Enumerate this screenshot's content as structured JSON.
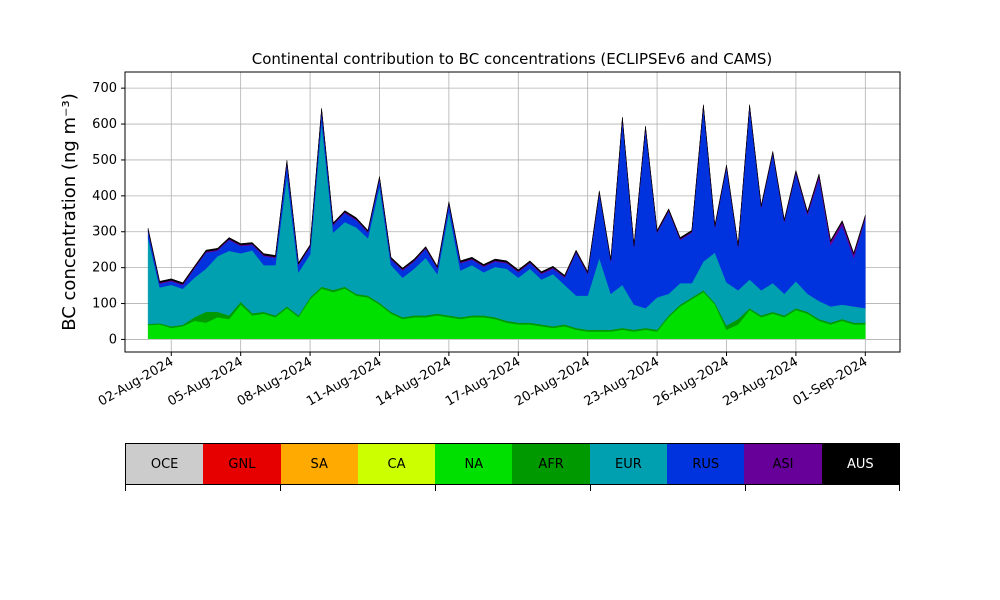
{
  "chart_data": {
    "type": "area",
    "stacked": true,
    "title": "Continental contribution to BC concentrations (ECLIPSEv6 and CAMS)",
    "ylabel": "BC concentration (ng m⁻³)",
    "xlabel": "",
    "x_ticks": [
      "02-Aug-2024",
      "05-Aug-2024",
      "08-Aug-2024",
      "11-Aug-2024",
      "14-Aug-2024",
      "17-Aug-2024",
      "20-Aug-2024",
      "23-Aug-2024",
      "26-Aug-2024",
      "29-Aug-2024",
      "01-Sep-2024"
    ],
    "y_ticks": [
      0,
      100,
      200,
      300,
      400,
      500,
      600,
      700
    ],
    "xlim": [
      "2024-07-31T00:00",
      "2024-09-02T12:00"
    ],
    "ylim": [
      -35,
      745
    ],
    "grid": true,
    "x": [
      "2024-08-01T00:00",
      "2024-08-01T12:00",
      "2024-08-02T00:00",
      "2024-08-02T12:00",
      "2024-08-03T00:00",
      "2024-08-03T12:00",
      "2024-08-04T00:00",
      "2024-08-04T12:00",
      "2024-08-05T00:00",
      "2024-08-05T12:00",
      "2024-08-06T00:00",
      "2024-08-06T12:00",
      "2024-08-07T00:00",
      "2024-08-07T12:00",
      "2024-08-08T00:00",
      "2024-08-08T12:00",
      "2024-08-09T00:00",
      "2024-08-09T12:00",
      "2024-08-10T00:00",
      "2024-08-10T12:00",
      "2024-08-11T00:00",
      "2024-08-11T12:00",
      "2024-08-12T00:00",
      "2024-08-12T12:00",
      "2024-08-13T00:00",
      "2024-08-13T12:00",
      "2024-08-14T00:00",
      "2024-08-14T12:00",
      "2024-08-15T00:00",
      "2024-08-15T12:00",
      "2024-08-16T00:00",
      "2024-08-16T12:00",
      "2024-08-17T00:00",
      "2024-08-17T12:00",
      "2024-08-18T00:00",
      "2024-08-18T12:00",
      "2024-08-19T00:00",
      "2024-08-19T12:00",
      "2024-08-20T00:00",
      "2024-08-20T12:00",
      "2024-08-21T00:00",
      "2024-08-21T12:00",
      "2024-08-22T00:00",
      "2024-08-22T12:00",
      "2024-08-23T00:00",
      "2024-08-23T12:00",
      "2024-08-24T00:00",
      "2024-08-24T12:00",
      "2024-08-25T00:00",
      "2024-08-25T12:00",
      "2024-08-26T00:00",
      "2024-08-26T12:00",
      "2024-08-27T00:00",
      "2024-08-27T12:00",
      "2024-08-28T00:00",
      "2024-08-28T12:00",
      "2024-08-29T00:00",
      "2024-08-29T12:00",
      "2024-08-30T00:00",
      "2024-08-30T12:00",
      "2024-08-31T00:00",
      "2024-08-31T12:00",
      "2024-09-01T00:00"
    ],
    "series": [
      {
        "name": "OCE",
        "color": "#cccccc",
        "values": [
          2,
          2,
          2,
          2,
          2,
          2,
          2,
          2,
          2,
          2,
          2,
          2,
          2,
          2,
          2,
          2,
          2,
          2,
          2,
          2,
          2,
          2,
          2,
          2,
          2,
          2,
          2,
          2,
          2,
          2,
          2,
          2,
          2,
          2,
          2,
          2,
          2,
          2,
          2,
          2,
          2,
          2,
          2,
          2,
          2,
          2,
          2,
          2,
          2,
          2,
          2,
          2,
          2,
          2,
          2,
          2,
          2,
          2,
          2,
          2,
          2,
          2,
          2
        ]
      },
      {
        "name": "GNL",
        "color": "#e60000",
        "values": [
          0,
          0,
          0,
          0,
          0,
          0,
          0,
          0,
          0,
          0,
          0,
          0,
          0,
          0,
          0,
          0,
          0,
          0,
          0,
          0,
          0,
          0,
          0,
          0,
          0,
          0,
          0,
          0,
          0,
          0,
          0,
          0,
          0,
          0,
          0,
          0,
          0,
          0,
          0,
          0,
          0,
          0,
          0,
          0,
          0,
          0,
          0,
          0,
          0,
          0,
          0,
          0,
          0,
          0,
          0,
          0,
          0,
          0,
          0,
          0,
          0,
          0,
          0
        ]
      },
      {
        "name": "SA",
        "color": "#ffaa00",
        "values": [
          0,
          0,
          0,
          0,
          0,
          0,
          0,
          0,
          0,
          0,
          0,
          0,
          0,
          0,
          0,
          0,
          0,
          0,
          0,
          0,
          0,
          0,
          0,
          0,
          0,
          0,
          0,
          0,
          0,
          0,
          0,
          0,
          0,
          0,
          0,
          0,
          0,
          0,
          0,
          0,
          0,
          0,
          0,
          0,
          0,
          0,
          0,
          0,
          0,
          0,
          0,
          0,
          0,
          0,
          0,
          0,
          0,
          0,
          0,
          0,
          0,
          0,
          0
        ]
      },
      {
        "name": "CA",
        "color": "#ccff00",
        "values": [
          0,
          0,
          0,
          0,
          0,
          0,
          0,
          0,
          0,
          0,
          0,
          0,
          0,
          0,
          0,
          0,
          0,
          0,
          0,
          0,
          0,
          0,
          0,
          0,
          0,
          0,
          0,
          0,
          0,
          0,
          0,
          0,
          0,
          0,
          0,
          0,
          0,
          0,
          0,
          0,
          0,
          0,
          0,
          0,
          0,
          0,
          0,
          0,
          0,
          0,
          0,
          0,
          0,
          0,
          0,
          0,
          0,
          0,
          0,
          0,
          0,
          0,
          0
        ]
      },
      {
        "name": "NA",
        "color": "#00e000",
        "values": [
          38,
          40,
          30,
          35,
          50,
          45,
          60,
          55,
          95,
          65,
          70,
          60,
          85,
          60,
          110,
          140,
          130,
          140,
          120,
          115,
          95,
          70,
          55,
          60,
          60,
          65,
          60,
          55,
          60,
          60,
          55,
          45,
          40,
          40,
          35,
          30,
          35,
          25,
          20,
          20,
          20,
          25,
          20,
          25,
          20,
          60,
          90,
          110,
          130,
          95,
          25,
          40,
          80,
          60,
          70,
          60,
          80,
          70,
          50,
          40,
          50,
          40,
          40
        ]
      },
      {
        "name": "AFR",
        "color": "#009900",
        "values": [
          3,
          3,
          5,
          4,
          10,
          30,
          15,
          10,
          8,
          6,
          5,
          5,
          5,
          5,
          5,
          5,
          6,
          5,
          5,
          5,
          5,
          5,
          5,
          5,
          5,
          5,
          5,
          5,
          5,
          5,
          5,
          5,
          5,
          5,
          5,
          5,
          5,
          5,
          5,
          5,
          5,
          5,
          5,
          5,
          5,
          5,
          5,
          5,
          5,
          5,
          12,
          15,
          5,
          5,
          5,
          5,
          5,
          5,
          5,
          5,
          5,
          5,
          5
        ]
      },
      {
        "name": "EUR",
        "color": "#00a0b0",
        "values": [
          240,
          100,
          115,
          100,
          110,
          120,
          155,
          180,
          135,
          175,
          130,
          140,
          365,
          120,
          120,
          460,
          160,
          180,
          185,
          160,
          325,
          130,
          110,
          130,
          160,
          110,
          290,
          130,
          140,
          120,
          140,
          145,
          125,
          150,
          125,
          145,
          110,
          90,
          95,
          200,
          100,
          120,
          70,
          55,
          90,
          60,
          60,
          40,
          80,
          140,
          120,
          80,
          80,
          70,
          80,
          60,
          75,
          50,
          50,
          45,
          40,
          45,
          40
        ]
      },
      {
        "name": "RUS",
        "color": "#0033dd",
        "values": [
          20,
          10,
          10,
          10,
          25,
          45,
          15,
          30,
          20,
          15,
          25,
          20,
          35,
          20,
          20,
          30,
          20,
          25,
          20,
          15,
          20,
          15,
          20,
          20,
          25,
          15,
          20,
          20,
          15,
          15,
          15,
          15,
          15,
          15,
          15,
          15,
          20,
          120,
          60,
          180,
          90,
          460,
          160,
          500,
          180,
          230,
          120,
          140,
          430,
          70,
          320,
          120,
          480,
          230,
          360,
          200,
          300,
          220,
          340,
          170,
          220,
          135,
          250
        ]
      },
      {
        "name": "ASI",
        "color": "#660099",
        "values": [
          3,
          3,
          3,
          3,
          3,
          3,
          3,
          3,
          3,
          3,
          3,
          3,
          3,
          3,
          3,
          3,
          3,
          3,
          3,
          3,
          3,
          3,
          3,
          3,
          3,
          3,
          3,
          3,
          3,
          3,
          3,
          3,
          3,
          3,
          3,
          3,
          3,
          3,
          3,
          3,
          3,
          3,
          3,
          3,
          3,
          3,
          3,
          3,
          3,
          3,
          3,
          3,
          3,
          3,
          3,
          3,
          5,
          5,
          10,
          10,
          10,
          10,
          5
        ]
      },
      {
        "name": "AUS",
        "color": "#000000",
        "values": [
          4,
          4,
          4,
          4,
          4,
          4,
          4,
          4,
          4,
          4,
          4,
          4,
          4,
          4,
          4,
          4,
          4,
          4,
          4,
          4,
          4,
          4,
          4,
          4,
          4,
          4,
          4,
          4,
          4,
          4,
          4,
          4,
          4,
          4,
          4,
          4,
          4,
          4,
          4,
          4,
          4,
          4,
          4,
          4,
          4,
          4,
          4,
          4,
          4,
          4,
          4,
          4,
          4,
          4,
          4,
          4,
          4,
          4,
          4,
          4,
          4,
          4,
          4
        ]
      }
    ]
  },
  "legend": {
    "items": [
      {
        "label": "OCE",
        "color": "#cccccc"
      },
      {
        "label": "GNL",
        "color": "#e60000"
      },
      {
        "label": "SA",
        "color": "#ffaa00"
      },
      {
        "label": "CA",
        "color": "#ccff00"
      },
      {
        "label": "NA",
        "color": "#00e000"
      },
      {
        "label": "AFR",
        "color": "#009900"
      },
      {
        "label": "EUR",
        "color": "#00a0b0"
      },
      {
        "label": "RUS",
        "color": "#0033dd"
      },
      {
        "label": "ASI",
        "color": "#660099"
      },
      {
        "label": "AUS",
        "color": "#000000"
      }
    ]
  }
}
